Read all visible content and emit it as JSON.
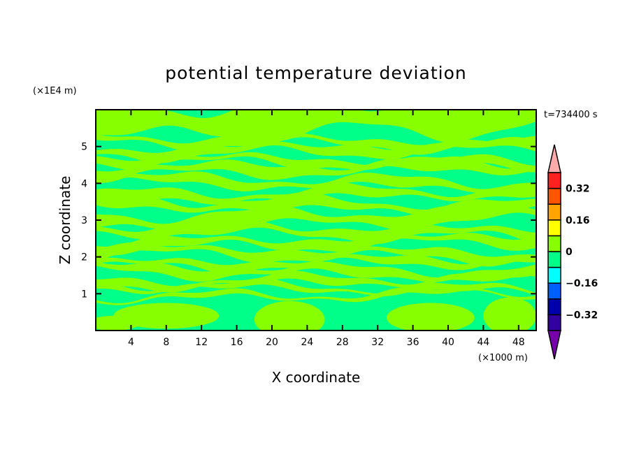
{
  "chart_data": {
    "type": "heatmap",
    "title": "potential temperature deviation",
    "xlabel": "X coordinate",
    "ylabel": "Z coordinate",
    "x_unit": "(×1000 m)",
    "y_unit": "(×1E4 m)",
    "time_label": "t=734400 s",
    "xlim": [
      0,
      50
    ],
    "ylim": [
      0,
      6
    ],
    "xticks": [
      4,
      8,
      12,
      16,
      20,
      24,
      28,
      32,
      36,
      40,
      44,
      48
    ],
    "yticks": [
      1,
      2,
      3,
      4,
      5
    ],
    "colorbar": {
      "levels": [
        -0.4,
        -0.32,
        -0.24,
        -0.16,
        -0.08,
        0,
        0.08,
        0.16,
        0.24,
        0.32,
        0.4
      ],
      "tick_labels": [
        {
          "value": 0.32,
          "label": "0.32"
        },
        {
          "value": 0.16,
          "label": "0.16"
        },
        {
          "value": 0,
          "label": "0"
        },
        {
          "value": -0.16,
          "label": "−0.16"
        },
        {
          "value": -0.32,
          "label": "−0.32"
        }
      ],
      "colors": [
        "#3300a0",
        "#0000a8",
        "#0060ff",
        "#00ffff",
        "#00ff88",
        "#88ff00",
        "#ffff00",
        "#ffa500",
        "#ff5500",
        "#ff2020"
      ],
      "over_color": "#ffaaaa",
      "under_color": "#7700aa"
    },
    "field_description": "values mostly between -0.08 and 0.08 with horizontal layered banding",
    "dominant_colors": {
      "negative_band": "#00ff88",
      "positive_band": "#88ff00"
    }
  }
}
